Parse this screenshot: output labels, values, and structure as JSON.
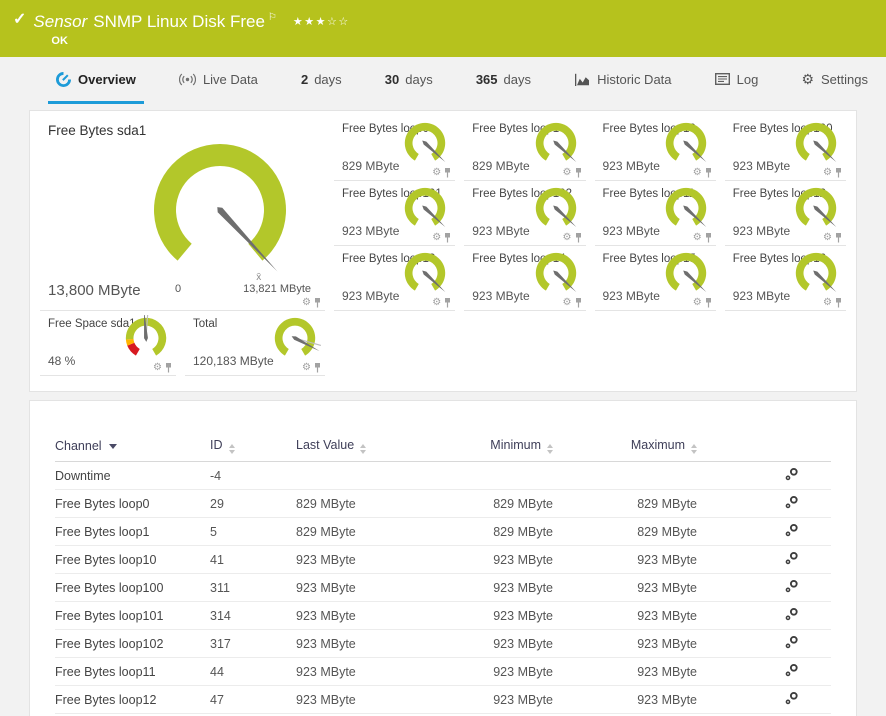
{
  "colors": {
    "header_green": "#b6c21d",
    "gauge_green": "#b3c72a",
    "accent_blue": "#1d9bd8",
    "red": "#d71920",
    "orange": "#ffb400",
    "needle_gray": "#6e6e6e"
  },
  "header": {
    "check": "✓",
    "title_prefix": "Sensor",
    "title_name": "SNMP Linux Disk Free",
    "flag": "⚐",
    "rating": "★★★☆☆",
    "status": "OK"
  },
  "tabs": [
    {
      "id": "overview",
      "icon": "gauge-icon",
      "label": "Overview",
      "active": true
    },
    {
      "id": "live-data",
      "icon": "live-icon",
      "label": "Live Data"
    },
    {
      "id": "2-days",
      "strong": "2",
      "label": "days"
    },
    {
      "id": "30-days",
      "strong": "30",
      "label": "days"
    },
    {
      "id": "365-days",
      "strong": "365",
      "label": "days"
    },
    {
      "id": "historic-data",
      "icon": "chart-icon",
      "label": "Historic Data"
    },
    {
      "id": "log",
      "icon": "log-icon",
      "label": "Log"
    },
    {
      "id": "settings",
      "icon": "gear-icon",
      "label": "Settings"
    }
  ],
  "gauges": {
    "main": {
      "title": "Free Bytes sda1",
      "value": "13,800 MByte",
      "scale_min": "0",
      "scale_max": "13,821 MByte",
      "avg_marker": "x̄",
      "needle_deg": 137
    },
    "small": [
      {
        "title": "Free Bytes loop0",
        "value": "829 MByte",
        "needle_deg": 133
      },
      {
        "title": "Free Bytes loop1",
        "value": "829 MByte",
        "needle_deg": 133
      },
      {
        "title": "Free Bytes loop10",
        "value": "923 MByte",
        "needle_deg": 133
      },
      {
        "title": "Free Bytes loop100",
        "value": "923 MByte",
        "needle_deg": 133
      },
      {
        "title": "Free Bytes loop101",
        "value": "923 MByte",
        "needle_deg": 133
      },
      {
        "title": "Free Bytes loop102",
        "value": "923 MByte",
        "needle_deg": 133
      },
      {
        "title": "Free Bytes loop11",
        "value": "923 MByte",
        "needle_deg": 133
      },
      {
        "title": "Free Bytes loop12",
        "value": "923 MByte",
        "needle_deg": 133
      },
      {
        "title": "Free Bytes loop13",
        "value": "923 MByte",
        "needle_deg": 133
      },
      {
        "title": "Free Bytes loop14",
        "value": "923 MByte",
        "needle_deg": 133
      },
      {
        "title": "Free Bytes loop15",
        "value": "923 MByte",
        "needle_deg": 133
      },
      {
        "title": "Free Bytes loop16",
        "value": "923 MByte",
        "needle_deg": 133
      }
    ],
    "bottom": [
      {
        "title": "Free Space sda1",
        "value": "48 %",
        "needle_deg": -4,
        "marker_deg": 4,
        "segments": [
          {
            "from": -150,
            "to": -112,
            "color": "#d71920"
          },
          {
            "from": -112,
            "to": -94,
            "color": "#ffb400"
          },
          {
            "from": -94,
            "to": 150,
            "color": "#b3c72a"
          }
        ]
      },
      {
        "title": "Total",
        "value": "120,183 MByte",
        "needle_deg": 118,
        "marker_deg": 106
      }
    ]
  },
  "table": {
    "columns": [
      {
        "label": "Channel",
        "sort": "desc"
      },
      {
        "label": "ID",
        "sort": "both"
      },
      {
        "label": "Last Value",
        "sort": "both"
      },
      {
        "label": "Minimum",
        "sort": "both"
      },
      {
        "label": "Maximum",
        "sort": "both"
      }
    ],
    "rows": [
      {
        "channel": "Downtime",
        "id": "-4",
        "last": "",
        "min": "",
        "max": ""
      },
      {
        "channel": "Free Bytes loop0",
        "id": "29",
        "last": "829 MByte",
        "min": "829 MByte",
        "max": "829 MByte"
      },
      {
        "channel": "Free Bytes loop1",
        "id": "5",
        "last": "829 MByte",
        "min": "829 MByte",
        "max": "829 MByte"
      },
      {
        "channel": "Free Bytes loop10",
        "id": "41",
        "last": "923 MByte",
        "min": "923 MByte",
        "max": "923 MByte"
      },
      {
        "channel": "Free Bytes loop100",
        "id": "311",
        "last": "923 MByte",
        "min": "923 MByte",
        "max": "923 MByte"
      },
      {
        "channel": "Free Bytes loop101",
        "id": "314",
        "last": "923 MByte",
        "min": "923 MByte",
        "max": "923 MByte"
      },
      {
        "channel": "Free Bytes loop102",
        "id": "317",
        "last": "923 MByte",
        "min": "923 MByte",
        "max": "923 MByte"
      },
      {
        "channel": "Free Bytes loop11",
        "id": "44",
        "last": "923 MByte",
        "min": "923 MByte",
        "max": "923 MByte"
      },
      {
        "channel": "Free Bytes loop12",
        "id": "47",
        "last": "923 MByte",
        "min": "923 MByte",
        "max": "923 MByte"
      }
    ]
  }
}
